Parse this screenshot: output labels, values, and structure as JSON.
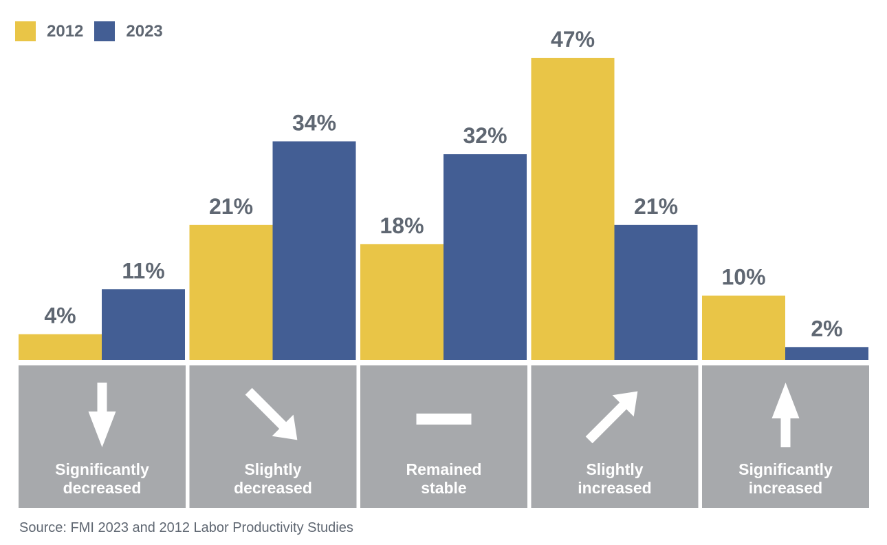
{
  "chart_data": {
    "type": "bar",
    "categories": [
      "Significantly decreased",
      "Slightly decreased",
      "Remained stable",
      "Slightly increased",
      "Significantly increased"
    ],
    "series": [
      {
        "name": "2012",
        "values": [
          4,
          21,
          18,
          47,
          10
        ],
        "labels": [
          "4%",
          "21%",
          "18%",
          "47%",
          "10%"
        ],
        "color": "#e9c547"
      },
      {
        "name": "2023",
        "values": [
          11,
          34,
          32,
          21,
          2
        ],
        "labels": [
          "11%",
          "34%",
          "32%",
          "21%",
          "2%"
        ],
        "color": "#435e94"
      }
    ],
    "category_lines": [
      [
        "Significantly",
        "decreased"
      ],
      [
        "Slightly",
        "decreased"
      ],
      [
        "Remained",
        "stable"
      ],
      [
        "Slightly",
        "increased"
      ],
      [
        "Significantly",
        "increased"
      ]
    ],
    "category_icons": [
      "arrow-down-icon",
      "arrow-down-right-icon",
      "dash-icon",
      "arrow-up-right-icon",
      "arrow-up-icon"
    ],
    "ylim": [
      0,
      47
    ],
    "grid": false,
    "legend_position": "top-left",
    "panel_color": "#a7a9ac"
  },
  "source": "Source: FMI 2023 and 2012 Labor Productivity Studies"
}
